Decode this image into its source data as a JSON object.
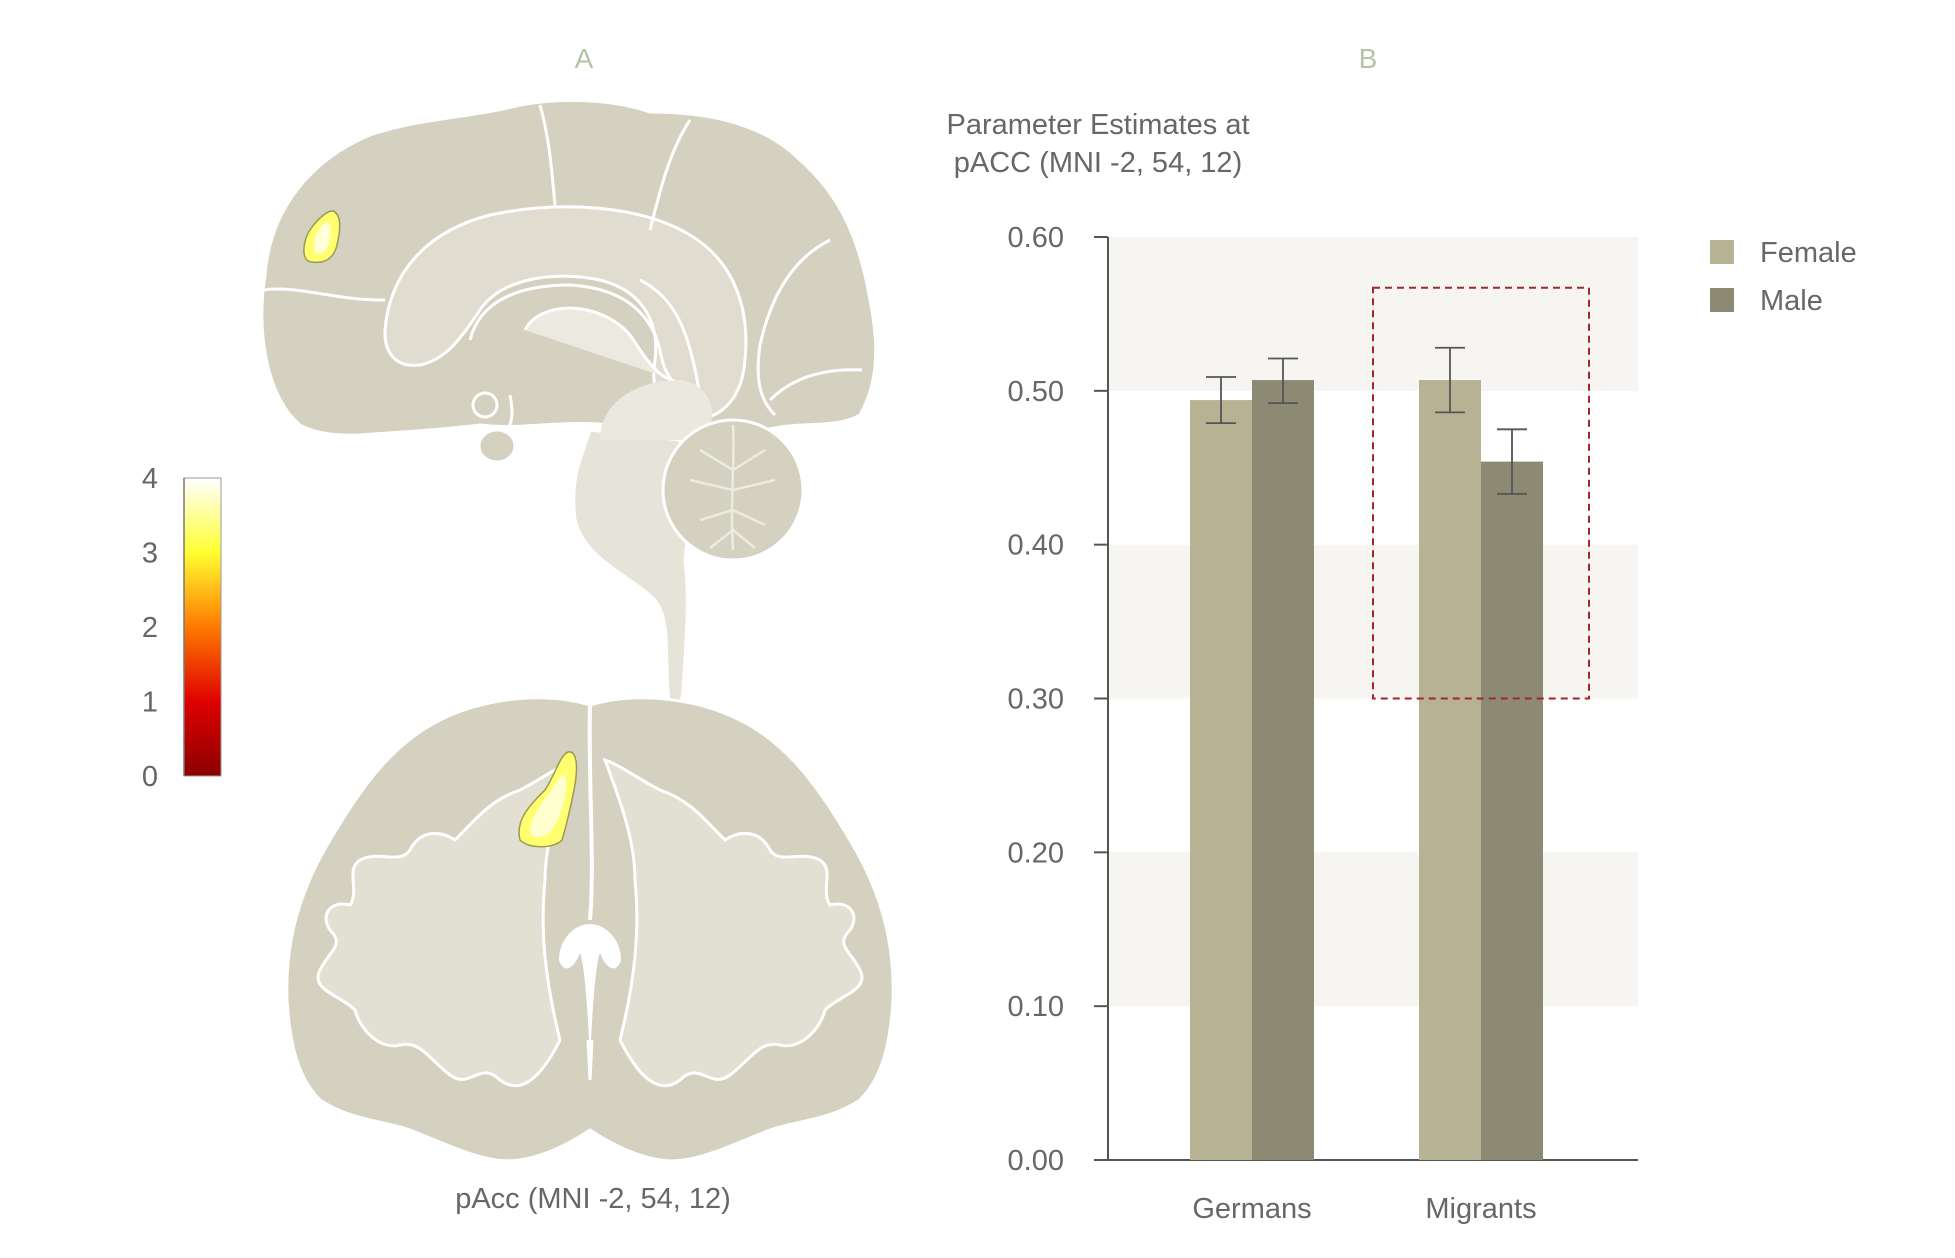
{
  "panels": {
    "a_label": "A",
    "b_label": "B"
  },
  "brain": {
    "caption": "pAcc (MNI -2, 54, 12)"
  },
  "colorbar": {
    "ticks": [
      "0",
      "1",
      "2",
      "3",
      "4"
    ],
    "range": [
      0,
      4
    ],
    "colors": [
      "#8b0000",
      "#e00000",
      "#ff7a00",
      "#ffff30",
      "#ffffff"
    ]
  },
  "chart_data": {
    "type": "bar",
    "title": "Parameter Estimates at pACC (MNI -2, 54, 12)",
    "title_lines": [
      "Parameter Estimates at",
      "pACC (MNI -2, 54, 12)"
    ],
    "categories": [
      "Germans",
      "Migrants"
    ],
    "series": [
      {
        "name": "Female",
        "values": [
          0.494,
          0.507
        ],
        "err_low": [
          0.479,
          0.486
        ],
        "err_high": [
          0.509,
          0.528
        ],
        "color": "#b8b294"
      },
      {
        "name": "Male",
        "values": [
          0.507,
          0.454
        ],
        "err_low": [
          0.492,
          0.433
        ],
        "err_high": [
          0.521,
          0.475
        ],
        "color": "#8d8a74"
      }
    ],
    "ylim": [
      0,
      0.6
    ],
    "yticks": [
      "0.00",
      "0.10",
      "0.20",
      "0.30",
      "0.40",
      "0.50",
      "0.60"
    ],
    "ytick_values": [
      0,
      0.1,
      0.2,
      0.3,
      0.4,
      0.5,
      0.6
    ],
    "xlabel": "",
    "ylabel": "",
    "legend_position": "top-right",
    "highlight_box": {
      "category": "Migrants",
      "y_range": [
        0.3,
        0.567
      ],
      "color": "#a3262a"
    },
    "background_bands": [
      [
        0.1,
        0.2
      ],
      [
        0.3,
        0.4
      ],
      [
        0.5,
        0.6
      ]
    ],
    "band_color": "#f7f5f2"
  }
}
